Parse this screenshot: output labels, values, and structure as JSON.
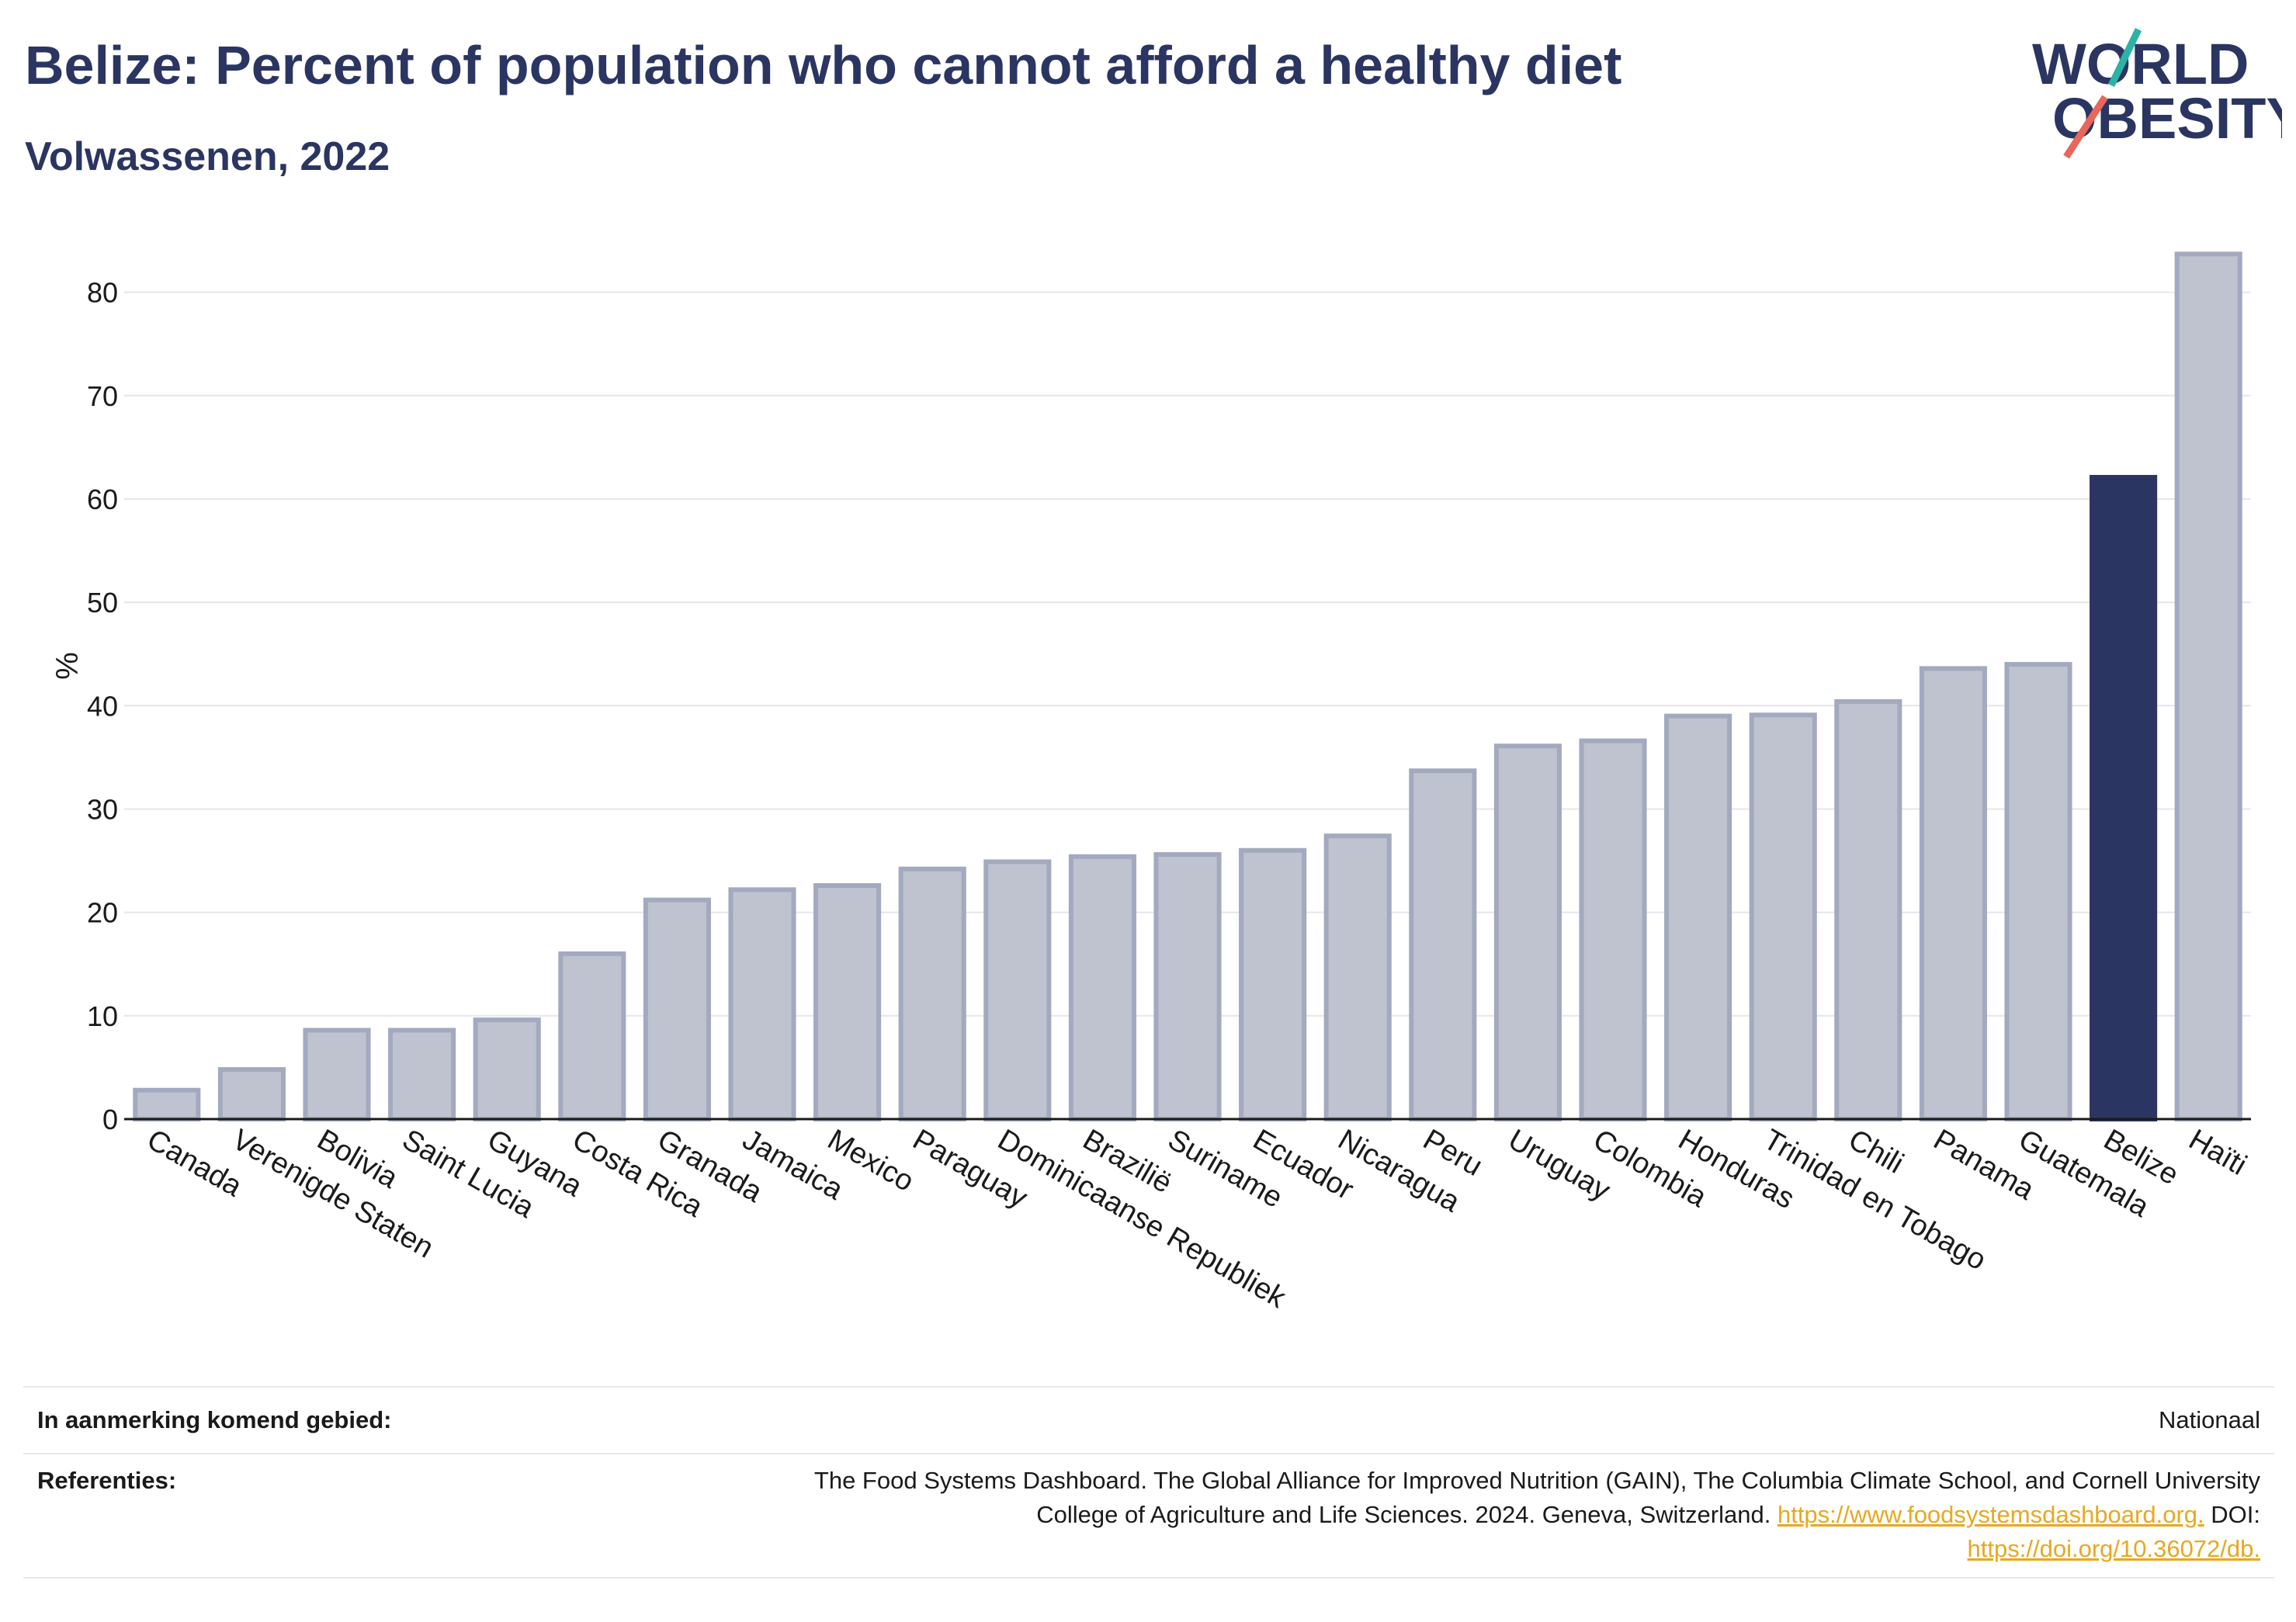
{
  "header": {
    "title": "Belize: Percent of population who cannot afford a healthy diet",
    "subtitle": "Volwassenen, 2022"
  },
  "logo": {
    "line1": "WORLD",
    "line2": "OBESITY"
  },
  "colors": {
    "highlight": "#2b3561",
    "bar": "#bfc3d0",
    "bar_stroke": "#a3a9be",
    "title": "#2b3561",
    "link": "#e8a81f"
  },
  "chart_data": {
    "type": "bar",
    "categories": [
      "Canada",
      "Verenigde Staten",
      "Bolivia",
      "Saint Lucia",
      "Guyana",
      "Costa Rica",
      "Granada",
      "Jamaica",
      "Mexico",
      "Paraguay",
      "Dominicaanse Republiek",
      "Brazilië",
      "Suriname",
      "Ecuador",
      "Nicaragua",
      "Peru",
      "Uruguay",
      "Colombia",
      "Honduras",
      "Trinidad en Tobago",
      "Chili",
      "Panama",
      "Guatemala",
      "Belize",
      "Haïti"
    ],
    "values": [
      2.8,
      4.8,
      8.6,
      8.6,
      9.6,
      16.0,
      21.2,
      22.2,
      22.6,
      24.2,
      24.9,
      25.4,
      25.6,
      26.0,
      27.4,
      33.7,
      36.1,
      36.6,
      39.0,
      39.1,
      40.4,
      43.6,
      44.0,
      62.1,
      83.7
    ],
    "highlight": "Belize",
    "ylabel": "%",
    "ylim": [
      0,
      85
    ],
    "yticks": [
      0,
      10,
      20,
      30,
      40,
      50,
      60,
      70,
      80
    ],
    "grid": true
  },
  "footer": {
    "region_label": "In aanmerking komend gebied:",
    "region_value": "Nationaal",
    "refs_label": "Referenties:",
    "refs_text_1": "The Food Systems Dashboard. The Global Alliance for Improved Nutrition (GAIN), The Columbia Climate School, and Cornell University",
    "refs_text_2": "College of Agriculture and Life Sciences. 2024. Geneva, Switzerland.",
    "refs_link_1": "https://www.foodsystemsdashboard.org.",
    "refs_doi": "DOI:",
    "refs_link_2": "https://doi.org/10.36072/db."
  }
}
